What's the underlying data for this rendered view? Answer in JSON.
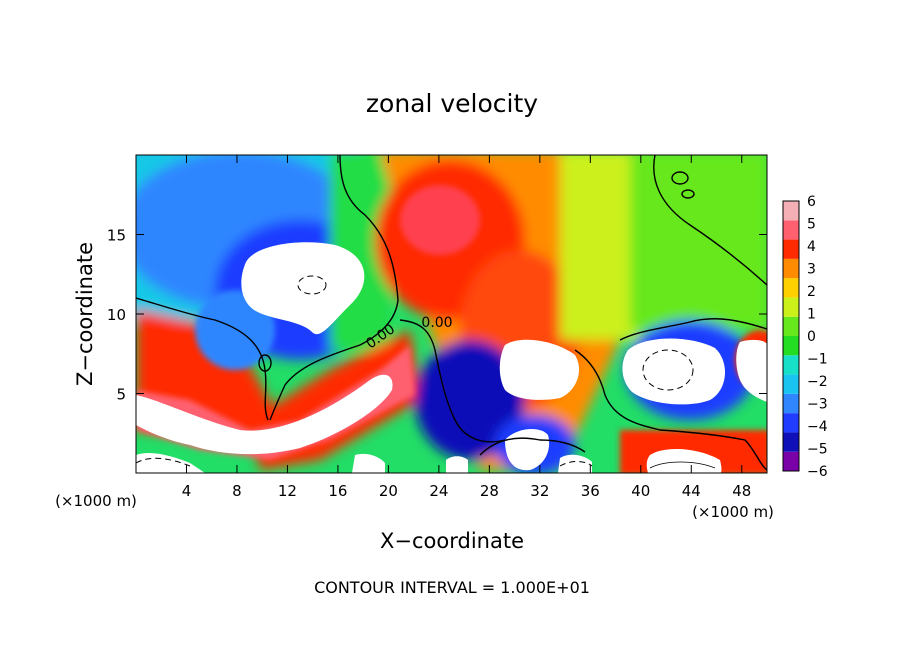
{
  "chart_data": {
    "type": "heatmap",
    "title": "zonal velocity",
    "xlabel": "X−coordinate",
    "ylabel": "Z−coordinate",
    "x_unit_left": "(×1000 m)",
    "x_unit_right": "(×1000 m)",
    "footer": "CONTOUR INTERVAL = 1.000E+01",
    "xlim": [
      0,
      50
    ],
    "ylim": [
      0,
      20
    ],
    "x_ticks": [
      4,
      8,
      12,
      16,
      20,
      24,
      28,
      32,
      36,
      40,
      44,
      48
    ],
    "x_tick_labels": [
      "4",
      "8",
      "12",
      "16",
      "20",
      "24",
      "28",
      "32",
      "36",
      "40",
      "44",
      "48"
    ],
    "y_ticks": [
      5,
      10,
      15
    ],
    "y_tick_labels": [
      "5",
      "10",
      "15"
    ],
    "contour_labels": [
      "0.00",
      "0.00"
    ],
    "colorbar": {
      "levels": [
        -6,
        -5,
        -4,
        -3,
        -2,
        -1,
        0,
        1,
        2,
        3,
        4,
        5,
        6
      ],
      "labels": [
        "−6",
        "−5",
        "−4",
        "−3",
        "−2",
        "−1",
        "0",
        "1",
        "2",
        "3",
        "4",
        "5",
        "6"
      ],
      "colors": [
        "#7a00a8",
        "#1010b8",
        "#1f3cff",
        "#2f86ff",
        "#19c4f0",
        "#18e0c8",
        "#22dd22",
        "#66e81c",
        "#ccf01a",
        "#ffd000",
        "#ff8c00",
        "#ff2a00",
        "#ff6070",
        "#f4b0b4"
      ]
    }
  }
}
